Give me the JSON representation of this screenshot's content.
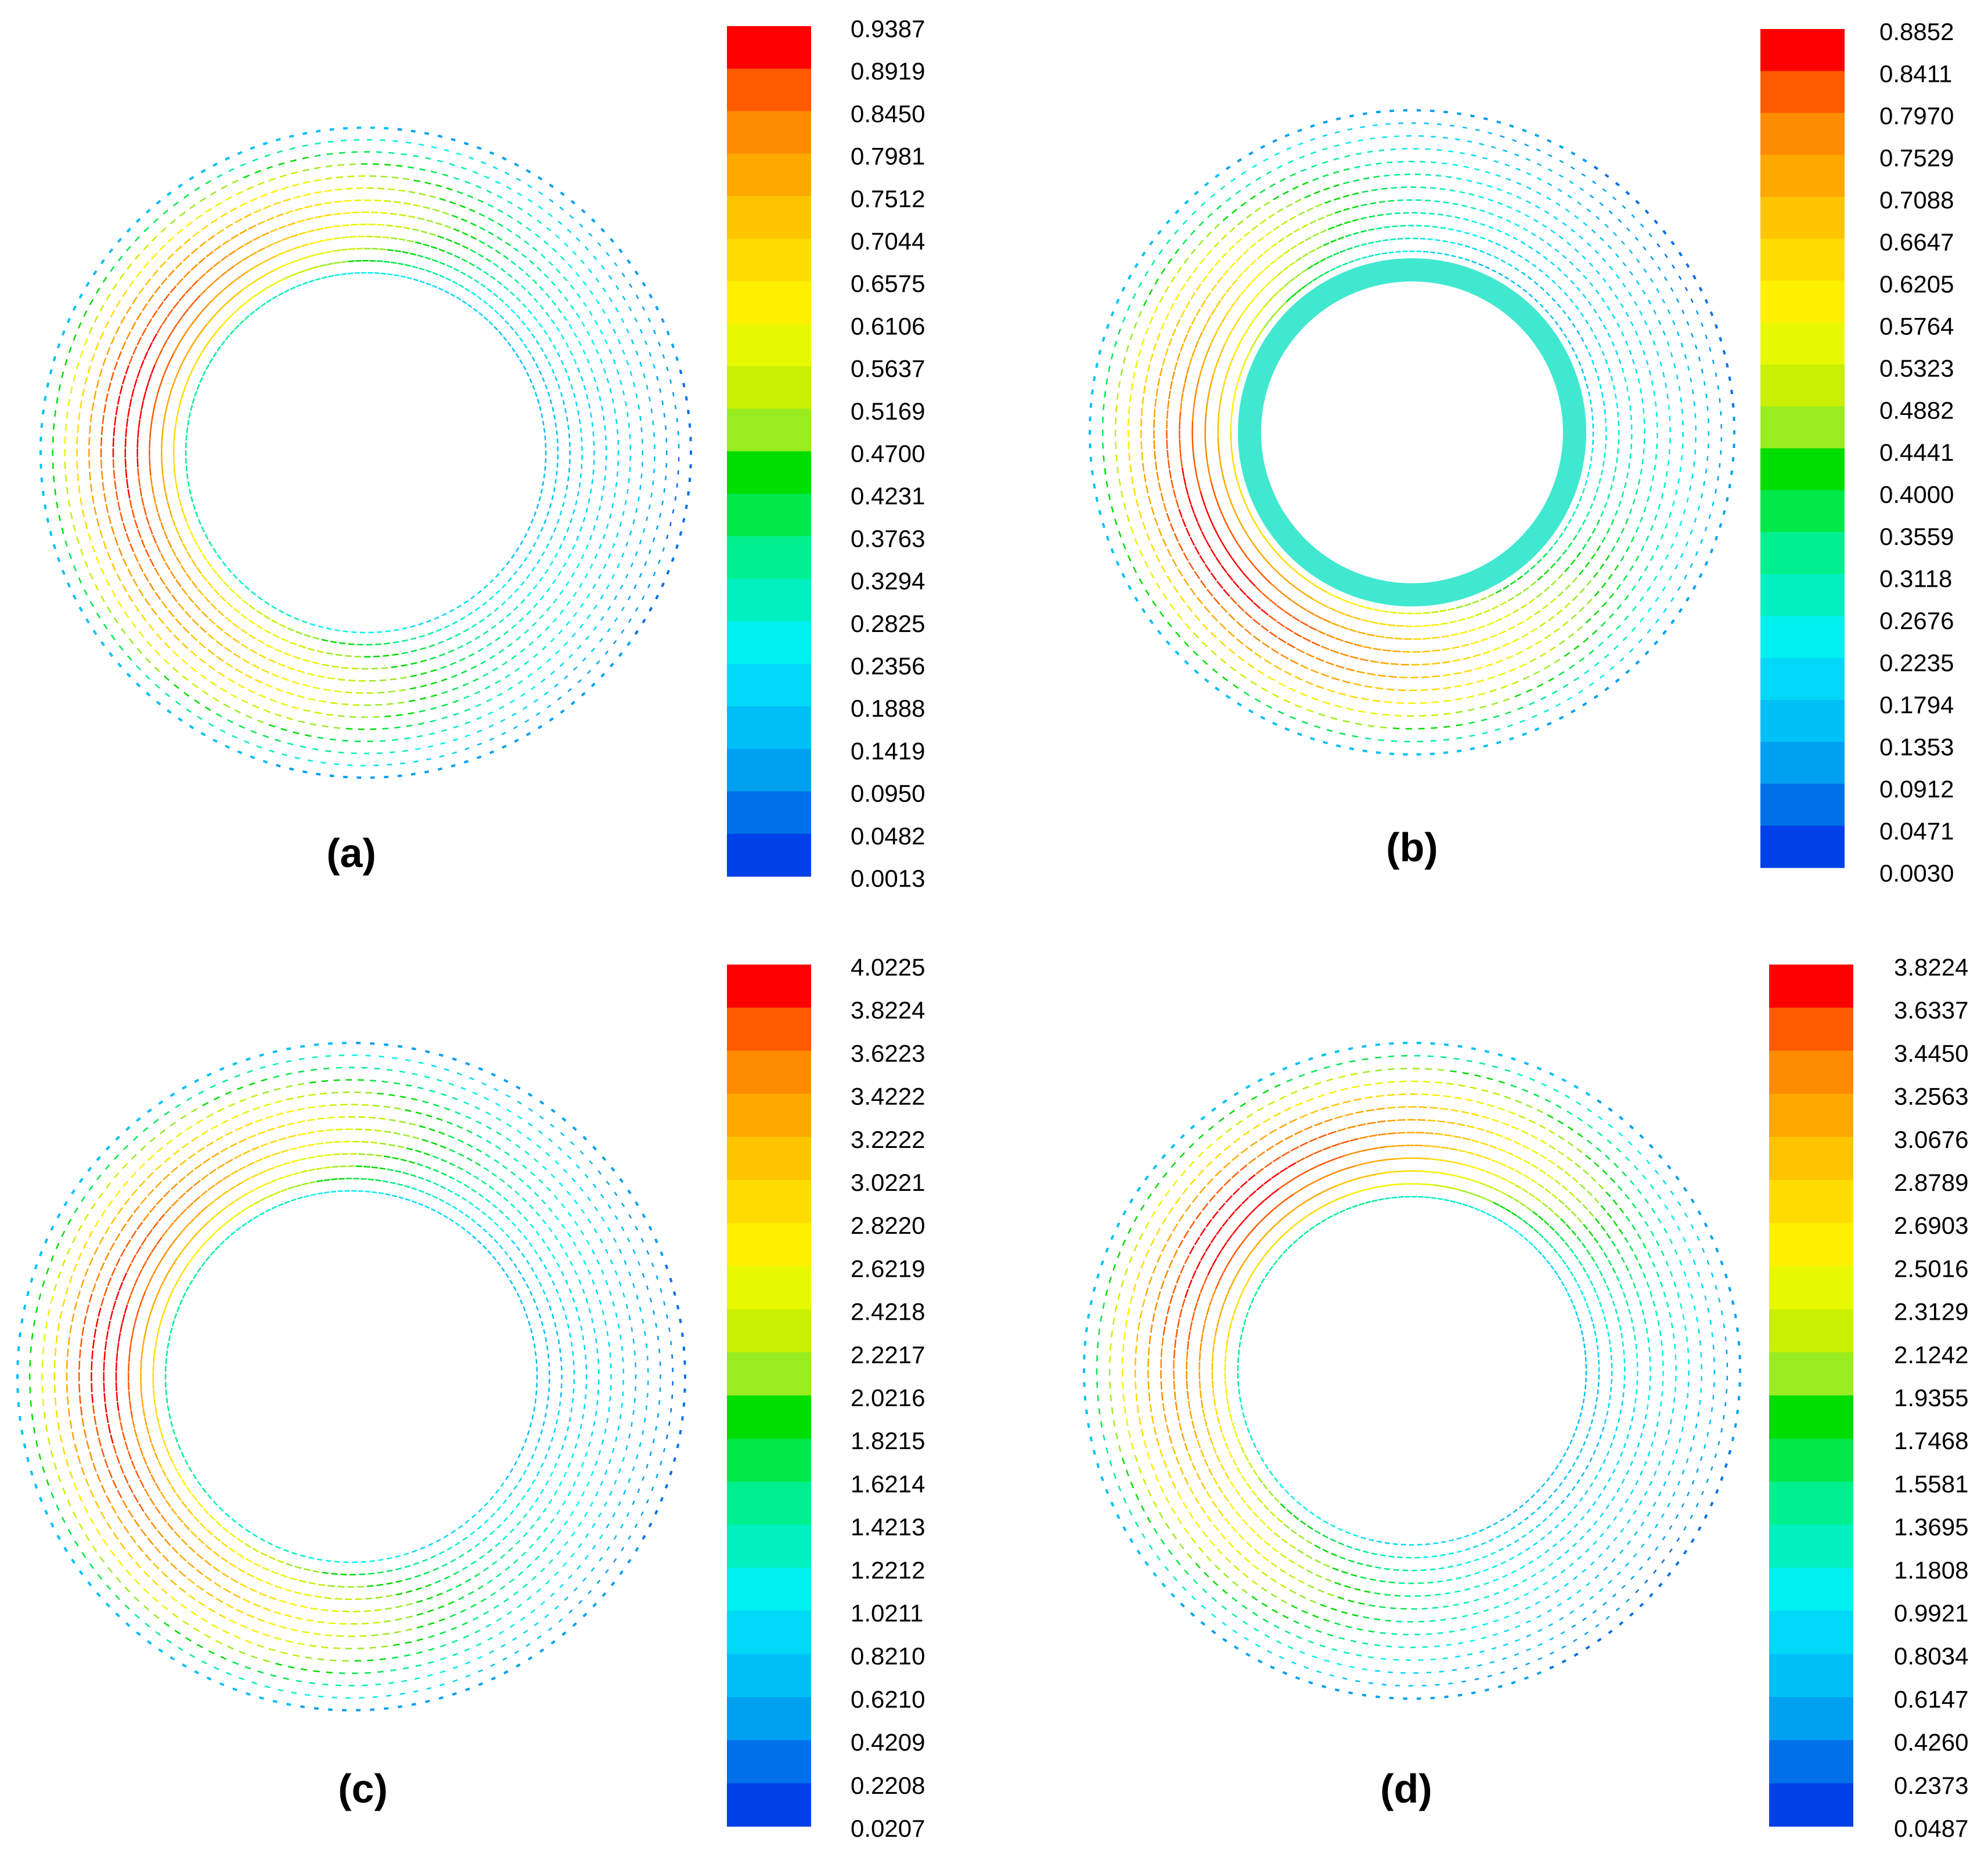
{
  "figure": {
    "panels": [
      {
        "id": "a",
        "caption": "(a)",
        "colorbar_ticks": [
          "0.9387",
          "0.8919",
          "0.8450",
          "0.7981",
          "0.7512",
          "0.7044",
          "0.6575",
          "0.6106",
          "0.5637",
          "0.5169",
          "0.4700",
          "0.4231",
          "0.3763",
          "0.3294",
          "0.2825",
          "0.2356",
          "0.1888",
          "0.1419",
          "0.0950",
          "0.0482",
          "0.0013"
        ],
        "inner_boundary_band": false
      },
      {
        "id": "b",
        "caption": "(b)",
        "colorbar_ticks": [
          "0.8852",
          "0.8411",
          "0.7970",
          "0.7529",
          "0.7088",
          "0.6647",
          "0.6205",
          "0.5764",
          "0.5323",
          "0.4882",
          "0.4441",
          "0.4000",
          "0.3559",
          "0.3118",
          "0.2676",
          "0.2235",
          "0.1794",
          "0.1353",
          "0.0912",
          "0.0471",
          "0.0030"
        ],
        "inner_boundary_band": true
      },
      {
        "id": "c",
        "caption": "(c)",
        "colorbar_ticks": [
          "4.0225",
          "3.8224",
          "3.6223",
          "3.4222",
          "3.2222",
          "3.0221",
          "2.8220",
          "2.6219",
          "2.4218",
          "2.2217",
          "2.0216",
          "1.8215",
          "1.6214",
          "1.4213",
          "1.2212",
          "1.0211",
          "0.8210",
          "0.6210",
          "0.4209",
          "0.2208",
          "0.0207"
        ],
        "inner_boundary_band": false
      },
      {
        "id": "d",
        "caption": "(d)",
        "colorbar_ticks": [
          "3.8224",
          "3.6337",
          "3.4450",
          "3.2563",
          "3.0676",
          "2.8789",
          "2.6903",
          "2.5016",
          "2.3129",
          "2.1242",
          "1.9355",
          "1.7468",
          "1.5581",
          "1.3695",
          "1.1808",
          "0.9921",
          "0.8034",
          "0.6147",
          "0.4260",
          "0.2373",
          "0.0487"
        ],
        "inner_boundary_band": false
      }
    ],
    "colormap": [
      "#ff0000",
      "#ff5a00",
      "#ff8c00",
      "#ffa800",
      "#ffc400",
      "#ffdc00",
      "#fff000",
      "#e8f800",
      "#c8f000",
      "#98ec20",
      "#00dd00",
      "#00e84a",
      "#00f090",
      "#00f0c0",
      "#00f0f0",
      "#00d8f8",
      "#00c0f8",
      "#00a0f0",
      "#0070e8",
      "#0040e8",
      "#0000ff"
    ]
  }
}
